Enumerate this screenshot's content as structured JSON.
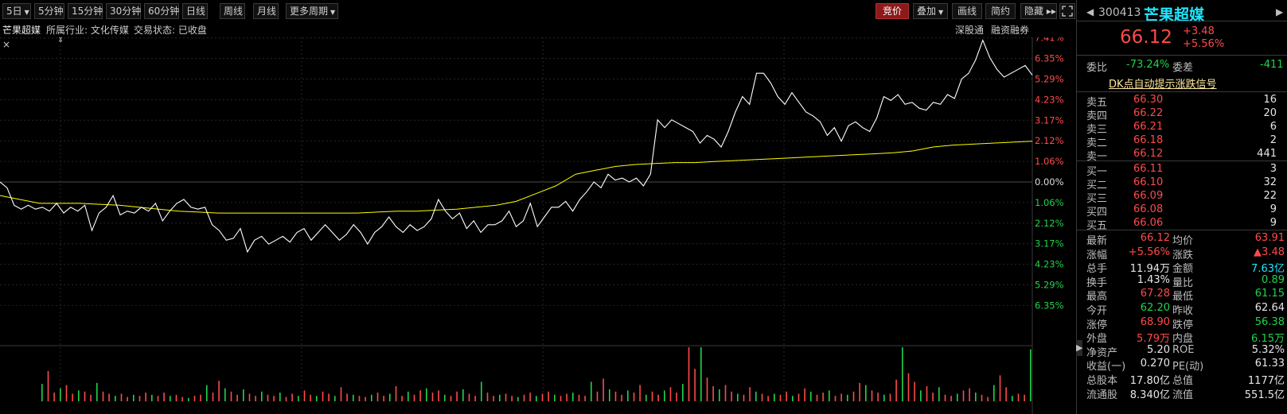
{
  "toolbar": {
    "buttons": [
      {
        "label": "5日",
        "dropdown": true
      },
      {
        "label": "5分钟"
      },
      {
        "label": "15分钟"
      },
      {
        "label": "30分钟"
      },
      {
        "label": "60分钟"
      },
      {
        "label": "日线"
      },
      {
        "label": "周线"
      },
      {
        "label": "月线"
      },
      {
        "label": "更多周期",
        "dropdown": true
      }
    ],
    "right_buttons": [
      {
        "label": "竞价",
        "active": true
      },
      {
        "label": "叠加",
        "dropdown": true
      },
      {
        "label": "画线"
      },
      {
        "label": "简约"
      },
      {
        "label": "隐藏 ▸▸"
      }
    ],
    "expand_icon": "expand-icon"
  },
  "infobar": {
    "stock_name": "芒果超媒",
    "industry": "所属行业: 文化传媒",
    "trade_status": "交易状态: 已收盘",
    "link1": "深股通",
    "link2": "融资融券"
  },
  "chart_data": {
    "type": "line",
    "y_ticks_up": [
      "7.41%",
      "6.35%",
      "5.29%",
      "4.23%",
      "3.17%",
      "2.12%",
      "1.06%"
    ],
    "y_tick_zero": "0.00%",
    "y_ticks_down": [
      "1.06%",
      "2.12%",
      "3.17%",
      "4.23%",
      "5.29%",
      "6.35%"
    ],
    "pct_range": [
      -7.41,
      7.41
    ],
    "series": [
      {
        "values": [
          0.0,
          -0.3,
          -1.2,
          -1.4,
          -1.2,
          -1.4,
          -1.3,
          -1.5,
          -1.1,
          -1.6,
          -1.3,
          -1.5,
          -1.2,
          -2.5,
          -1.6,
          -1.3,
          -0.7,
          -1.7,
          -1.5,
          -1.6,
          -1.3,
          -1.5,
          -1.1,
          -2.0,
          -1.5,
          -1.1,
          -0.9,
          -1.3,
          -1.4,
          -1.3,
          -2.2,
          -2.5,
          -3.0,
          -2.9,
          -2.4,
          -3.6,
          -3.0,
          -2.8,
          -3.2,
          -3.0,
          -2.8,
          -3.1,
          -2.6,
          -2.4,
          -3.0,
          -2.6,
          -2.2,
          -2.6,
          -3.0,
          -2.7,
          -2.2,
          -2.6,
          -3.2,
          -2.6,
          -2.3,
          -1.8,
          -2.3,
          -2.6,
          -2.2,
          -2.5,
          -2.3,
          -1.9,
          -0.9,
          -1.5,
          -1.9,
          -1.6,
          -2.4,
          -2.0,
          -2.6,
          -2.2,
          -2.2,
          -2.0,
          -1.5,
          -2.3,
          -2.0,
          -1.1,
          -2.3,
          -1.8,
          -1.3,
          -1.3,
          -1.0,
          -1.5,
          -0.9,
          -0.5,
          0.0,
          -0.3,
          0.4,
          0.1,
          0.2,
          0.0,
          0.2,
          -0.2,
          0.4,
          3.2,
          2.8,
          3.2,
          3.0,
          2.8,
          2.6,
          2.0,
          2.4,
          2.2,
          1.8,
          2.6,
          3.6,
          4.4,
          4.0,
          5.6,
          5.6,
          5.1,
          4.4,
          4.0,
          4.6,
          4.1,
          3.6,
          3.4,
          3.1,
          2.4,
          2.8,
          2.1,
          2.9,
          3.1,
          2.8,
          2.6,
          3.3,
          4.4,
          4.2,
          4.5,
          4.0,
          4.1,
          3.8,
          3.7,
          4.1,
          4.0,
          4.5,
          4.3,
          5.3,
          5.6,
          6.3,
          7.3,
          6.4,
          5.8,
          5.4,
          5.6,
          5.8,
          6.0,
          5.5
        ],
        "color": "#ffffff"
      },
      {
        "values": [
          -0.7,
          -0.9,
          -1.1,
          -1.1,
          -1.1,
          -1.15,
          -1.2,
          -1.3,
          -1.4,
          -1.5,
          -1.55,
          -1.6,
          -1.6,
          -1.6,
          -1.6,
          -1.6,
          -1.6,
          -1.6,
          -1.6,
          -1.55,
          -1.5,
          -1.5,
          -1.45,
          -1.4,
          -1.3,
          -1.2,
          -1.0,
          -0.6,
          -0.2,
          0.4,
          0.6,
          0.8,
          0.9,
          0.95,
          1.0,
          1.0,
          1.05,
          1.1,
          1.15,
          1.2,
          1.25,
          1.3,
          1.35,
          1.4,
          1.45,
          1.5,
          1.6,
          1.8,
          1.9,
          1.95,
          2.0,
          2.05,
          2.1
        ],
        "color": "#ffff00"
      }
    ],
    "volume_bars": [
      0.32,
      0.56,
      0.16,
      0.24,
      0.3,
      0.14,
      0.2,
      0.18,
      0.12,
      0.34,
      0.18,
      0.14,
      0.1,
      0.14,
      0.08,
      0.12,
      0.1,
      0.16,
      0.12,
      0.1,
      0.16,
      0.1,
      0.12,
      0.08,
      0.06,
      0.1,
      0.12,
      0.3,
      0.16,
      0.38,
      0.24,
      0.18,
      0.12,
      0.22,
      0.14,
      0.1,
      0.18,
      0.12,
      0.1,
      0.16,
      0.08,
      0.14,
      0.1,
      0.2,
      0.12,
      0.1,
      0.18,
      0.14,
      0.1,
      0.26,
      0.14,
      0.12,
      0.1,
      0.08,
      0.12,
      0.16,
      0.1,
      0.14,
      0.28,
      0.1,
      0.18,
      0.12,
      0.2,
      0.24,
      0.16,
      0.2,
      0.12,
      0.1,
      0.18,
      0.22,
      0.14,
      0.1,
      0.36,
      0.16,
      0.1,
      0.12,
      0.14,
      0.1,
      0.08,
      0.12,
      0.16,
      0.1,
      0.14,
      0.18,
      0.12,
      0.1,
      0.14,
      0.16,
      0.12,
      0.1,
      0.36,
      0.18,
      0.42,
      0.22,
      0.18,
      0.12,
      0.2,
      0.16,
      0.3,
      0.12,
      0.18,
      0.12,
      0.2,
      0.26,
      0.16,
      0.32,
      1.0,
      0.6,
      1.0,
      0.44,
      0.28,
      0.22,
      0.3,
      0.18,
      0.14,
      0.12,
      0.26,
      0.18,
      0.14,
      0.1,
      0.14,
      0.12,
      0.18,
      0.1,
      0.14,
      0.24,
      0.18,
      0.12,
      0.16,
      0.2,
      0.1,
      0.14,
      0.12,
      0.18,
      0.34,
      0.3,
      0.2,
      0.16,
      0.12,
      0.14,
      0.4,
      1.0,
      0.52,
      0.36,
      0.2,
      0.28,
      0.16,
      0.26,
      0.12,
      0.1,
      0.14,
      0.2,
      0.24,
      0.16,
      0.12,
      0.08,
      0.3,
      0.48,
      0.26,
      0.1,
      0.14,
      0.12,
      0.96
    ]
  },
  "panel": {
    "code": "300413",
    "name": "芒果超媒",
    "price": "66.12",
    "change": "+3.48",
    "change_pct": "+5.56%",
    "weibi_label": "委比",
    "weibi_value": "-73.24%",
    "weicha_label": "委差",
    "weicha_value": "-411",
    "signal_link": "DK点自动提示涨跌信号",
    "asks": [
      {
        "label": "卖五",
        "price": "66.30",
        "vol": "16"
      },
      {
        "label": "卖四",
        "price": "66.22",
        "vol": "20"
      },
      {
        "label": "卖三",
        "price": "66.21",
        "vol": "6"
      },
      {
        "label": "卖二",
        "price": "66.18",
        "vol": "2"
      },
      {
        "label": "卖一",
        "price": "66.12",
        "vol": "441"
      }
    ],
    "bids": [
      {
        "label": "买一",
        "price": "66.11",
        "vol": "3"
      },
      {
        "label": "买二",
        "price": "66.10",
        "vol": "32"
      },
      {
        "label": "买三",
        "price": "66.09",
        "vol": "22"
      },
      {
        "label": "买四",
        "price": "66.08",
        "vol": "9"
      },
      {
        "label": "买五",
        "price": "66.06",
        "vol": "9"
      }
    ],
    "stats": [
      {
        "l1": "最新",
        "v1": "66.12",
        "c1": "red",
        "l2": "均价",
        "v2": "63.91",
        "c2": "red"
      },
      {
        "l1": "涨幅",
        "v1": "+5.56%",
        "c1": "red",
        "l2": "涨跌",
        "v2": "▲3.48",
        "c2": "red"
      },
      {
        "l1": "总手",
        "v1": "11.94万",
        "c1": "white",
        "l2": "金额",
        "v2": "7.63亿",
        "c2": "cyan"
      },
      {
        "l1": "换手",
        "v1": "1.43%",
        "c1": "white",
        "l2": "量比",
        "v2": "0.89",
        "c2": "green"
      },
      {
        "l1": "最高",
        "v1": "67.28",
        "c1": "red",
        "l2": "最低",
        "v2": "61.15",
        "c2": "green"
      },
      {
        "l1": "今开",
        "v1": "62.20",
        "c1": "green",
        "l2": "昨收",
        "v2": "62.64",
        "c2": "white"
      },
      {
        "l1": "涨停",
        "v1": "68.90",
        "c1": "red",
        "l2": "跌停",
        "v2": "56.38",
        "c2": "green"
      },
      {
        "l1": "外盘",
        "v1": "5.79万",
        "c1": "red",
        "l2": "内盘",
        "v2": "6.15万",
        "c2": "green"
      },
      {
        "l1": "净资产",
        "v1": "5.20",
        "c1": "white",
        "l2": "ROE",
        "v2": "5.32%",
        "c2": "white"
      },
      {
        "l1": "收益(一)",
        "v1": "0.270",
        "c1": "white",
        "l2": "PE(动)",
        "v2": "61.33",
        "c2": "white"
      },
      {
        "l1": "总股本",
        "v1": "17.80亿",
        "c1": "white",
        "l2": "总值",
        "v2": "1177亿",
        "c2": "white"
      },
      {
        "l1": "流通股",
        "v1": "8.340亿",
        "c1": "white",
        "l2": "流值",
        "v2": "551.5亿",
        "c2": "white"
      }
    ]
  }
}
